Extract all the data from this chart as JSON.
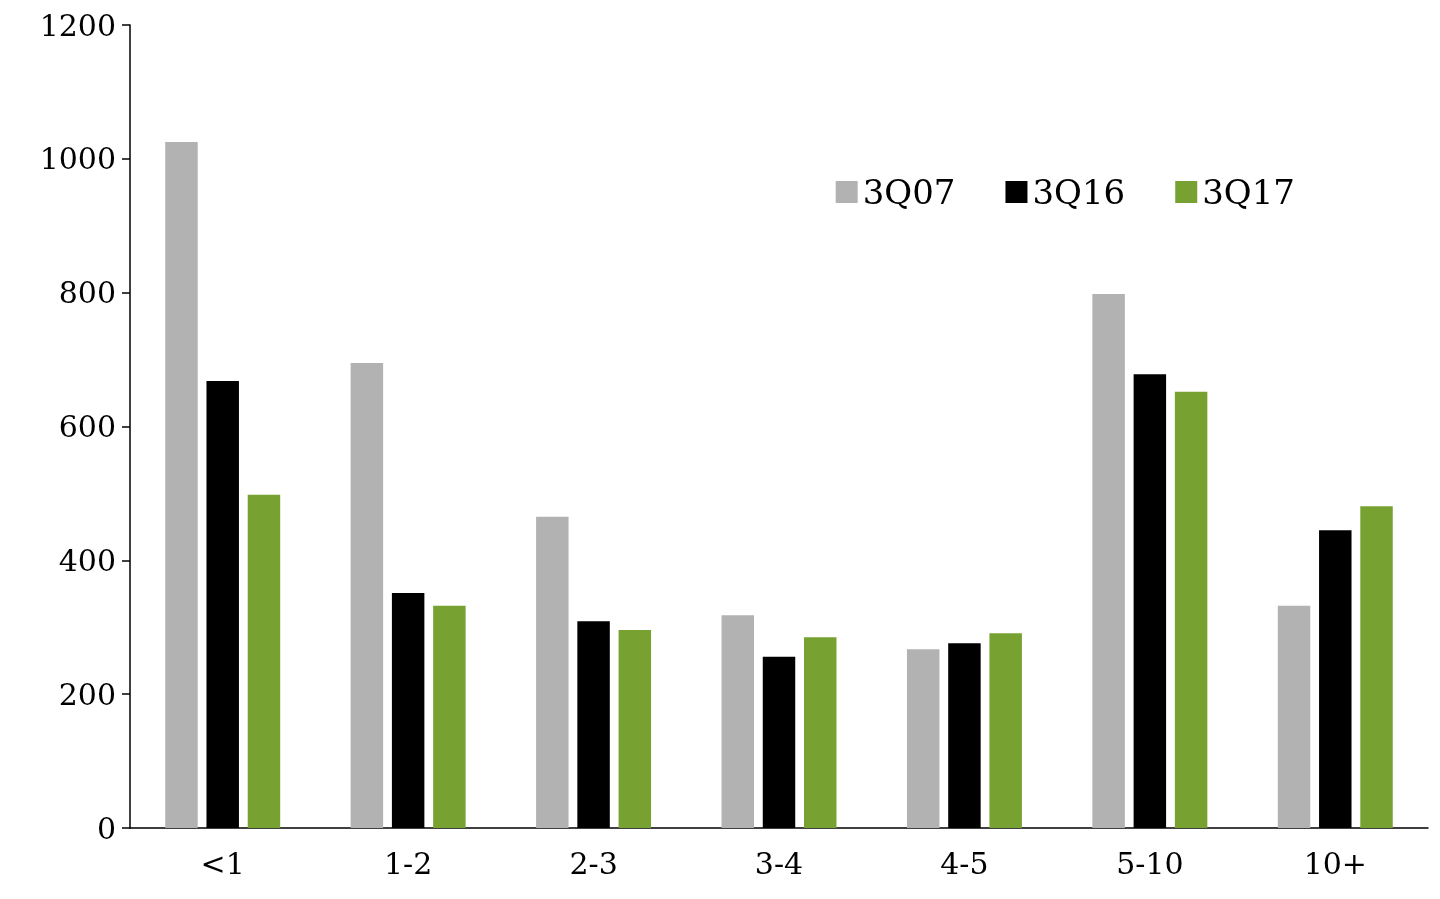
{
  "chart_data": {
    "type": "bar",
    "categories": [
      "<1",
      "1-2",
      "2-3",
      "3-4",
      "4-5",
      "5-10",
      "10+"
    ],
    "series": [
      {
        "name": "3Q07",
        "color": "#b2b2b2",
        "values": [
          1025,
          695,
          465,
          318,
          267,
          798,
          332
        ]
      },
      {
        "name": "3Q16",
        "color": "#000000",
        "values": [
          668,
          351,
          309,
          256,
          276,
          678,
          445
        ]
      },
      {
        "name": "3Q17",
        "color": "#77a232",
        "values": [
          498,
          332,
          296,
          285,
          291,
          652,
          481
        ]
      }
    ],
    "ylim": [
      0,
      1200
    ],
    "yticks": [
      0,
      200,
      400,
      600,
      800,
      1000,
      1200
    ],
    "grid": false,
    "legend": "top right"
  }
}
